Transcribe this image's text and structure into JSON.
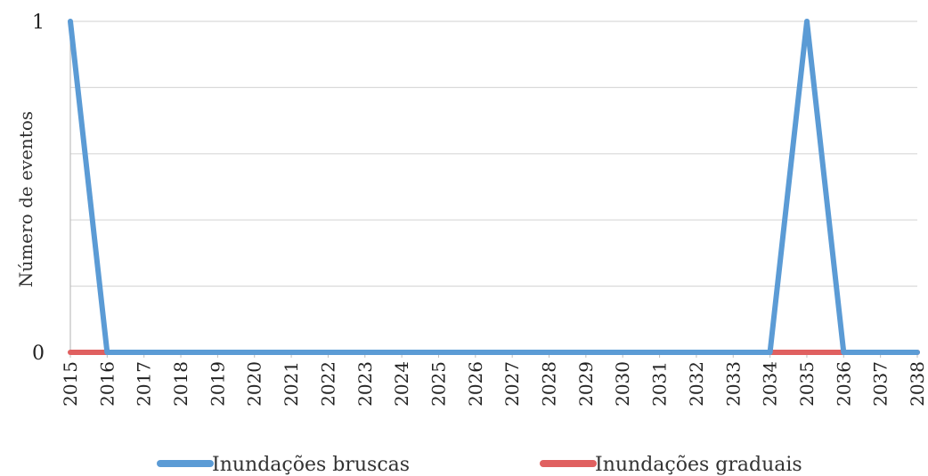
{
  "chart_data": {
    "type": "line",
    "title": "",
    "xlabel": "",
    "ylabel": "Número de eventos",
    "x": [
      "2015",
      "2016",
      "2017",
      "2018",
      "2019",
      "2020",
      "2021",
      "2022",
      "2023",
      "2024",
      "2025",
      "2026",
      "2027",
      "2028",
      "2029",
      "2030",
      "2031",
      "2032",
      "2033",
      "2034",
      "2035",
      "2036",
      "2037",
      "2038"
    ],
    "ylim": [
      0,
      1
    ],
    "y_ticks": [
      "0",
      "1"
    ],
    "grid": true,
    "legend_position": "bottom",
    "series": [
      {
        "name": "Inundações bruscas",
        "color": "#5b9bd5",
        "values": [
          1,
          0,
          0,
          0,
          0,
          0,
          0,
          0,
          0,
          0,
          0,
          0,
          0,
          0,
          0,
          0,
          0,
          0,
          0,
          0,
          1,
          0,
          0,
          0
        ]
      },
      {
        "name": "Inundações graduais",
        "color": "#e06060",
        "values": [
          0,
          0,
          0,
          0,
          0,
          0,
          0,
          0,
          0,
          0,
          0,
          0,
          0,
          0,
          0,
          0,
          0,
          0,
          0,
          0,
          0,
          0,
          0,
          0
        ]
      }
    ]
  }
}
